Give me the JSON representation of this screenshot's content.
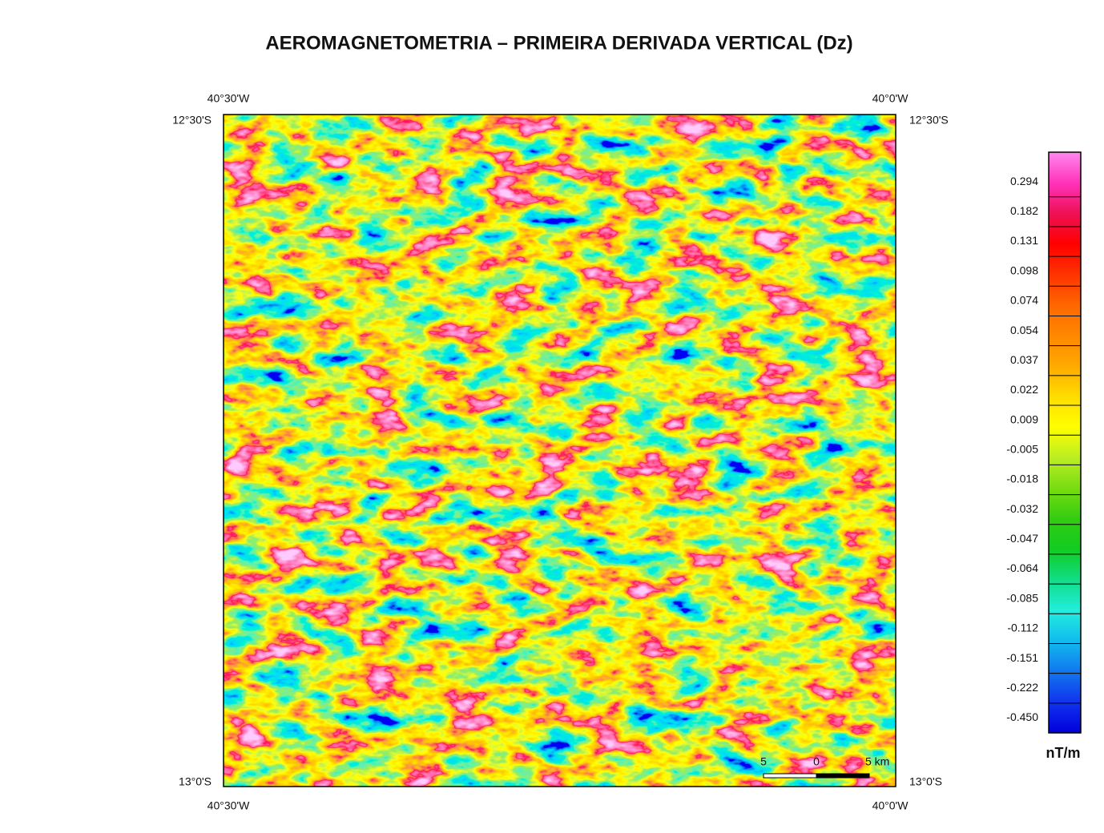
{
  "title": "AEROMAGNETOMETRIA – PRIMEIRA DERIVADA VERTICAL (Dz)",
  "coordinates": {
    "top_left_lon": "40°30'W",
    "top_right_lon": "40°0'W",
    "top_left_lat": "12°30'S",
    "top_right_lat": "12°30'S",
    "bottom_left_lat": "13°0'S",
    "bottom_right_lat": "13°0'S",
    "bottom_left_lon": "40°30'W",
    "bottom_right_lon": "40°0'W"
  },
  "scale_bar": {
    "labels": [
      "5",
      "0",
      "5 km"
    ]
  },
  "legend": {
    "unit": "nT/m",
    "ticks": [
      "0.294",
      "0.182",
      "0.131",
      "0.098",
      "0.074",
      "0.054",
      "0.037",
      "0.022",
      "0.009",
      "-0.005",
      "-0.018",
      "-0.032",
      "-0.047",
      "-0.064",
      "-0.085",
      "-0.112",
      "-0.151",
      "-0.222",
      "-0.450"
    ],
    "colors": [
      "#ff88ee",
      "#ff33bb",
      "#ee1155",
      "#ff0000",
      "#ff3300",
      "#ff6600",
      "#ff8800",
      "#ffaa00",
      "#ffdd00",
      "#ffff00",
      "#bbee22",
      "#77dd11",
      "#33cc11",
      "#11cc22",
      "#11dd88",
      "#22eedd",
      "#11bbee",
      "#1177ee",
      "#1133ee",
      "#0000dd"
    ]
  }
}
